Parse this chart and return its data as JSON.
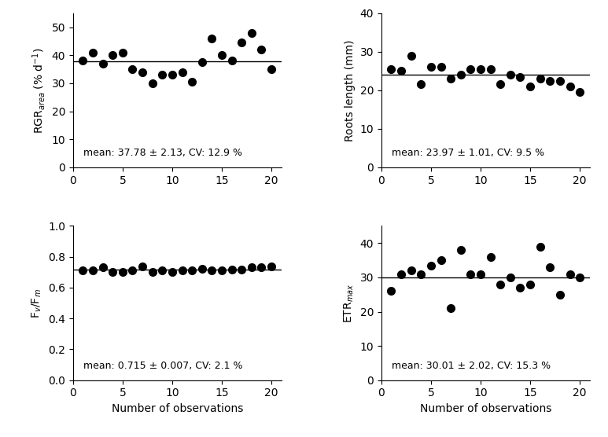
{
  "panel1": {
    "ylabel": "RGR$_{area}$ (% d$^{-1}$)",
    "mean": 37.78,
    "ylim": [
      0,
      55
    ],
    "yticks": [
      0,
      10,
      20,
      30,
      40,
      50
    ],
    "annotation": "mean: 37.78 ± 2.13, CV: 12.9 %",
    "data_x": [
      1,
      2,
      3,
      4,
      5,
      6,
      7,
      8,
      9,
      10,
      11,
      12,
      13,
      14,
      15,
      16,
      17,
      18,
      19,
      20
    ],
    "data_y": [
      38,
      41,
      37,
      40,
      41,
      35,
      34,
      30,
      33,
      33,
      34,
      30.5,
      37.5,
      46,
      40,
      38,
      44.5,
      48,
      42,
      35
    ]
  },
  "panel2": {
    "ylabel": "Roots length (mm)",
    "mean": 23.97,
    "ylim": [
      0,
      40
    ],
    "yticks": [
      0,
      10,
      20,
      30,
      40
    ],
    "annotation": "mean: 23.97 ± 1.01, CV: 9.5 %",
    "data_x": [
      1,
      2,
      3,
      4,
      5,
      6,
      7,
      8,
      9,
      10,
      11,
      12,
      13,
      14,
      15,
      16,
      17,
      18,
      19,
      20
    ],
    "data_y": [
      25.5,
      25,
      29,
      21.5,
      26,
      26,
      23,
      24,
      25.5,
      25.5,
      25.5,
      21.5,
      24,
      23.5,
      21,
      23,
      22.5,
      22.5,
      21,
      19.5
    ]
  },
  "panel3": {
    "ylabel": "F$_v$/F$_m$",
    "mean": 0.715,
    "ylim": [
      0,
      1.0
    ],
    "yticks": [
      0,
      0.2,
      0.4,
      0.6,
      0.8,
      1.0
    ],
    "annotation": "mean: 0.715 ± 0.007, CV: 2.1 %",
    "data_x": [
      1,
      2,
      3,
      4,
      5,
      6,
      7,
      8,
      9,
      10,
      11,
      12,
      13,
      14,
      15,
      16,
      17,
      18,
      19,
      20
    ],
    "data_y": [
      0.71,
      0.71,
      0.73,
      0.7,
      0.7,
      0.71,
      0.74,
      0.7,
      0.71,
      0.7,
      0.71,
      0.71,
      0.72,
      0.71,
      0.71,
      0.715,
      0.715,
      0.73,
      0.73,
      0.74
    ]
  },
  "panel4": {
    "ylabel": "ETR$_{max}$",
    "mean": 30.01,
    "ylim": [
      0,
      45
    ],
    "yticks": [
      0,
      10,
      20,
      30,
      40
    ],
    "annotation": "mean: 30.01 ± 2.02, CV: 15.3 %",
    "data_x": [
      1,
      2,
      3,
      4,
      5,
      6,
      7,
      8,
      9,
      10,
      11,
      12,
      13,
      14,
      15,
      16,
      17,
      18,
      19,
      20
    ],
    "data_y": [
      26,
      31,
      32,
      31,
      33.5,
      35,
      21,
      38,
      31,
      31,
      36,
      28,
      30,
      27,
      28,
      39,
      33,
      25,
      31,
      30
    ]
  },
  "xlabel": "Number of observations",
  "xticks": [
    0,
    5,
    10,
    15,
    20
  ],
  "xlim": [
    0,
    21
  ],
  "marker_color": "black",
  "line_color": "black",
  "marker_size": 49,
  "font_size": 10,
  "annotation_font_size": 9
}
